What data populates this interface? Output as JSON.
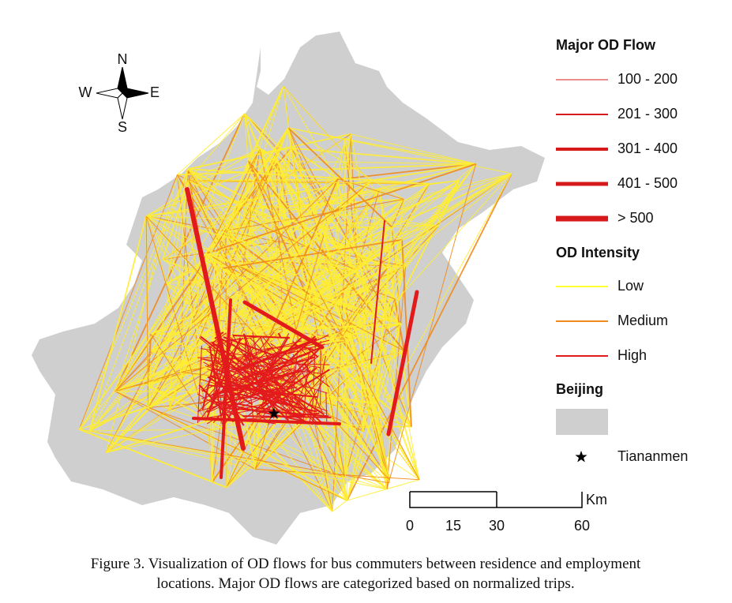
{
  "compass": {
    "north": "N",
    "south": "S",
    "west": "W",
    "east": "E"
  },
  "legend": {
    "major_od_flow": {
      "title": "Major OD Flow",
      "items": [
        "100 - 200",
        "201 - 300",
        "301 - 400",
        "401 - 500",
        "> 500"
      ]
    },
    "od_intensity": {
      "title": "OD Intensity",
      "items": [
        "Low",
        "Medium",
        "High"
      ]
    },
    "beijing": {
      "title": "Beijing"
    },
    "tiananmen": "Tiananmen"
  },
  "scale_bar": {
    "labels": [
      0,
      15,
      30,
      60
    ],
    "unit": "Km"
  },
  "caption": [
    "Figure 3. Visualization of OD flows for bus commuters between residence and employment",
    "locations. Major OD flows are categorized based on normalized trips."
  ]
}
